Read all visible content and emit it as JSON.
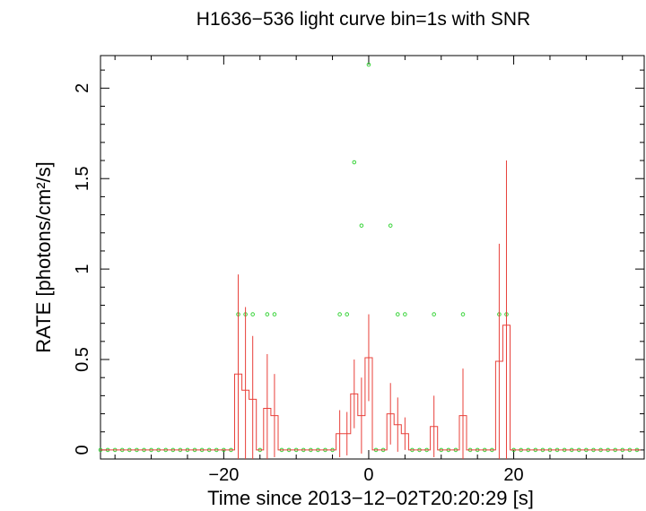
{
  "chart_data": {
    "type": "line",
    "title": "H1636−536 light curve bin=1s with SNR",
    "xlabel": "Time since 2013−12−02T20:20:29 [s]",
    "ylabel": "RATE [photons/cm²/s]",
    "xlim": [
      -37,
      38
    ],
    "ylim": [
      -0.05,
      2.18
    ],
    "grid": false,
    "x_ticks": [
      -20,
      0,
      20
    ],
    "x_tick_labels": [
      "−20",
      "0",
      "20"
    ],
    "y_ticks": [
      0,
      0.5,
      1,
      1.5,
      2
    ],
    "y_tick_labels": [
      "0",
      "0.5",
      "1",
      "1.5",
      "2"
    ],
    "colors": {
      "rate": "#e8403a",
      "snr": "#39d43a",
      "frame": "#000000"
    },
    "series": [
      {
        "role": "rate",
        "x": [
          -37,
          -36,
          -35,
          -34,
          -33,
          -32,
          -31,
          -30,
          -29,
          -28,
          -27,
          -26,
          -25,
          -24,
          -23,
          -22,
          -21,
          -20,
          -19,
          -18,
          -17,
          -16,
          -15,
          -14,
          -13,
          -12,
          -11,
          -10,
          -9,
          -8,
          -7,
          -6,
          -5,
          -4,
          -3,
          -2,
          -1,
          0,
          1,
          2,
          3,
          4,
          5,
          6,
          7,
          8,
          9,
          10,
          11,
          12,
          13,
          14,
          15,
          16,
          17,
          18,
          19,
          20,
          21,
          22,
          23,
          24,
          25,
          26,
          27,
          28,
          29,
          30,
          31,
          32,
          33,
          34,
          35,
          36,
          37
        ],
        "values": [
          0,
          0,
          0,
          0,
          0,
          0,
          0,
          0,
          0,
          0,
          0,
          0,
          0,
          0,
          0,
          0,
          0,
          0,
          0,
          0.42,
          0.33,
          0.28,
          0,
          0.23,
          0.19,
          0,
          0,
          0,
          0,
          0,
          0,
          0,
          0,
          0.09,
          0.09,
          0.31,
          0.19,
          0.51,
          0,
          0,
          0.2,
          0.14,
          0.09,
          0,
          0,
          0,
          0.13,
          0,
          0,
          0,
          0.19,
          0,
          0,
          0,
          0,
          0.49,
          0.69,
          0,
          0,
          0,
          0,
          0,
          0,
          0,
          0,
          0,
          0,
          0,
          0,
          0,
          0,
          0,
          0,
          0,
          0
        ],
        "errors": [
          0,
          0,
          0,
          0,
          0,
          0,
          0,
          0,
          0,
          0,
          0,
          0,
          0,
          0,
          0,
          0,
          0,
          0,
          0,
          0.55,
          0.46,
          0.35,
          0,
          0.3,
          0.23,
          0,
          0,
          0,
          0,
          0,
          0,
          0,
          0,
          0.13,
          0.12,
          0.19,
          0.21,
          0.24,
          0,
          0,
          0.17,
          0.15,
          0.09,
          0,
          0,
          0,
          0.17,
          0,
          0,
          0,
          0.26,
          0,
          0,
          0,
          0,
          0.65,
          0.91,
          0,
          0,
          0,
          0,
          0,
          0,
          0,
          0,
          0,
          0,
          0,
          0,
          0,
          0,
          0,
          0,
          0,
          0
        ]
      },
      {
        "role": "snr",
        "marker": "circle",
        "x": [
          -37,
          -36,
          -35,
          -34,
          -33,
          -32,
          -31,
          -30,
          -29,
          -28,
          -27,
          -26,
          -25,
          -24,
          -23,
          -22,
          -21,
          -20,
          -19,
          -18,
          -17,
          -16,
          -15,
          -14,
          -13,
          -12,
          -11,
          -10,
          -9,
          -8,
          -7,
          -6,
          -5,
          -4,
          -3,
          -2,
          -1,
          0,
          1,
          2,
          3,
          4,
          5,
          6,
          7,
          8,
          9,
          10,
          11,
          12,
          13,
          14,
          15,
          16,
          17,
          18,
          19,
          20,
          21,
          22,
          23,
          24,
          25,
          26,
          27,
          28,
          29,
          30,
          31,
          32,
          33,
          34,
          35,
          36,
          37
        ],
        "values": [
          0,
          0,
          0,
          0,
          0,
          0,
          0,
          0,
          0,
          0,
          0,
          0,
          0,
          0,
          0,
          0,
          0,
          0,
          0,
          0.75,
          0.75,
          0.75,
          0,
          0.75,
          0.75,
          0,
          0,
          0,
          0,
          0,
          0,
          0,
          0,
          0.75,
          0.75,
          1.59,
          1.24,
          2.13,
          0,
          0,
          1.24,
          0.75,
          0.75,
          0,
          0,
          0,
          0.75,
          0,
          0,
          0,
          0.75,
          0,
          0,
          0,
          0,
          0.75,
          0.75,
          0,
          0,
          0,
          0,
          0,
          0,
          0,
          0,
          0,
          0,
          0,
          0,
          0,
          0,
          0,
          0,
          0,
          0
        ]
      }
    ]
  }
}
